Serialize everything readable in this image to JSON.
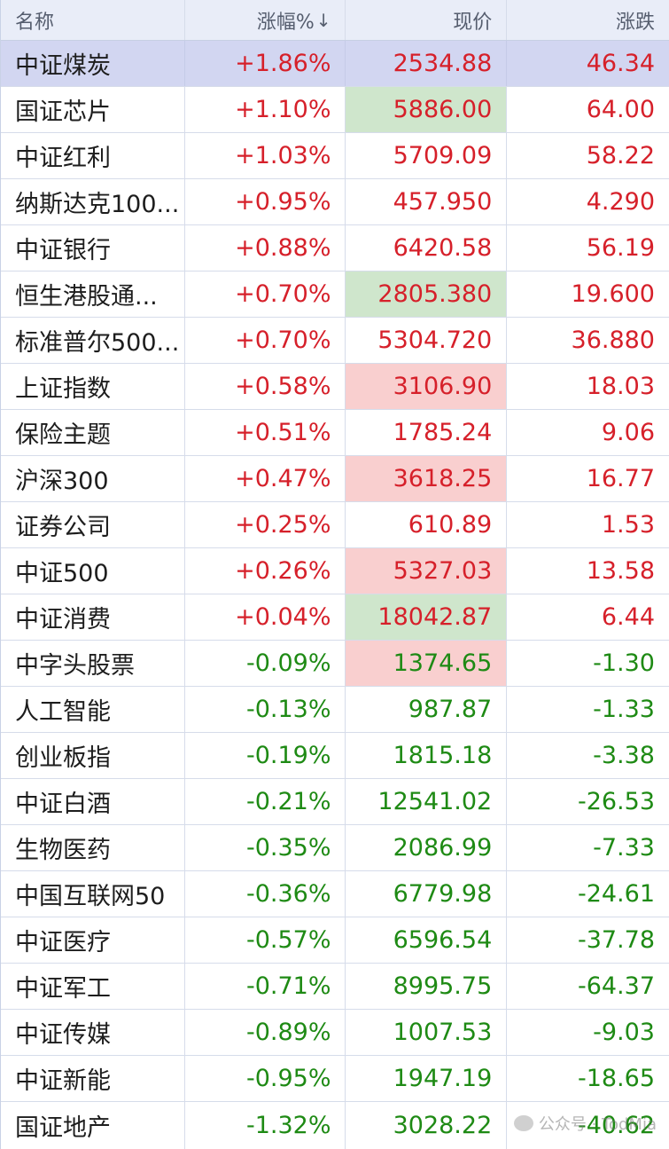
{
  "header": {
    "name": "名称",
    "pct": "涨幅%",
    "sort_icon": "↓",
    "price": "现价",
    "change": "涨跌"
  },
  "colors": {
    "up": "#d6202a",
    "down": "#1e8a14",
    "selected_row": "#d2d6f1",
    "highlight_green": "#cfe6cc",
    "highlight_red": "#f9cfcf"
  },
  "rows": [
    {
      "name": "中证煤炭",
      "pct": "+1.86%",
      "price": "2534.88",
      "change": "46.34",
      "dir": "up",
      "highlight": "",
      "selected": true
    },
    {
      "name": "国证芯片",
      "pct": "+1.10%",
      "price": "5886.00",
      "change": "64.00",
      "dir": "up",
      "highlight": "green"
    },
    {
      "name": "中证红利",
      "pct": "+1.03%",
      "price": "5709.09",
      "change": "58.22",
      "dir": "up",
      "highlight": ""
    },
    {
      "name": "纳斯达克100...",
      "pct": "+0.95%",
      "price": "457.950",
      "change": "4.290",
      "dir": "up",
      "highlight": ""
    },
    {
      "name": "中证银行",
      "pct": "+0.88%",
      "price": "6420.58",
      "change": "56.19",
      "dir": "up",
      "highlight": ""
    },
    {
      "name": "恒生港股通...",
      "pct": "+0.70%",
      "price": "2805.380",
      "change": "19.600",
      "dir": "up",
      "highlight": "green"
    },
    {
      "name": "标准普尔500...",
      "pct": "+0.70%",
      "price": "5304.720",
      "change": "36.880",
      "dir": "up",
      "highlight": ""
    },
    {
      "name": "上证指数",
      "pct": "+0.58%",
      "price": "3106.90",
      "change": "18.03",
      "dir": "up",
      "highlight": "red"
    },
    {
      "name": "保险主题",
      "pct": "+0.51%",
      "price": "1785.24",
      "change": "9.06",
      "dir": "up",
      "highlight": ""
    },
    {
      "name": "沪深300",
      "pct": "+0.47%",
      "price": "3618.25",
      "change": "16.77",
      "dir": "up",
      "highlight": "red"
    },
    {
      "name": "证券公司",
      "pct": "+0.25%",
      "price": "610.89",
      "change": "1.53",
      "dir": "up",
      "highlight": ""
    },
    {
      "name": "中证500",
      "pct": "+0.26%",
      "price": "5327.03",
      "change": "13.58",
      "dir": "up",
      "highlight": "red"
    },
    {
      "name": "中证消费",
      "pct": "+0.04%",
      "price": "18042.87",
      "change": "6.44",
      "dir": "up",
      "highlight": "green"
    },
    {
      "name": "中字头股票",
      "pct": "-0.09%",
      "price": "1374.65",
      "change": "-1.30",
      "dir": "down",
      "highlight": "red"
    },
    {
      "name": "人工智能",
      "pct": "-0.13%",
      "price": "987.87",
      "change": "-1.33",
      "dir": "down",
      "highlight": ""
    },
    {
      "name": "创业板指",
      "pct": "-0.19%",
      "price": "1815.18",
      "change": "-3.38",
      "dir": "down",
      "highlight": ""
    },
    {
      "name": "中证白酒",
      "pct": "-0.21%",
      "price": "12541.02",
      "change": "-26.53",
      "dir": "down",
      "highlight": ""
    },
    {
      "name": "生物医药",
      "pct": "-0.35%",
      "price": "2086.99",
      "change": "-7.33",
      "dir": "down",
      "highlight": ""
    },
    {
      "name": "中国互联网50",
      "pct": "-0.36%",
      "price": "6779.98",
      "change": "-24.61",
      "dir": "down",
      "highlight": ""
    },
    {
      "name": "中证医疗",
      "pct": "-0.57%",
      "price": "6596.54",
      "change": "-37.78",
      "dir": "down",
      "highlight": ""
    },
    {
      "name": "中证军工",
      "pct": "-0.71%",
      "price": "8995.75",
      "change": "-64.37",
      "dir": "down",
      "highlight": ""
    },
    {
      "name": "中证传媒",
      "pct": "-0.89%",
      "price": "1007.53",
      "change": "-9.03",
      "dir": "down",
      "highlight": ""
    },
    {
      "name": "中证新能",
      "pct": "-0.95%",
      "price": "1947.19",
      "change": "-18.65",
      "dir": "down",
      "highlight": ""
    },
    {
      "name": "国证地产",
      "pct": "-1.32%",
      "price": "3028.22",
      "change": "-40.62",
      "dir": "down",
      "highlight": ""
    }
  ],
  "watermark": {
    "text": "公众号 · TodMia"
  }
}
